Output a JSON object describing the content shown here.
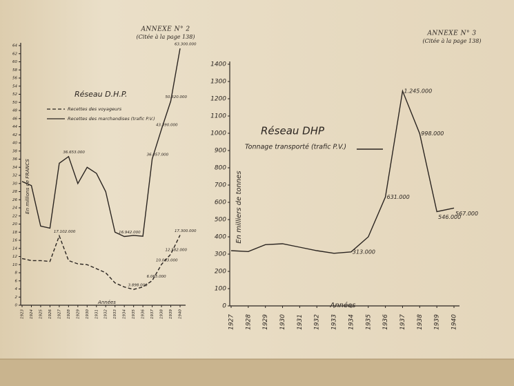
{
  "chart_data": [
    {
      "type": "line",
      "annex": "ANNEXE N° 2",
      "annex_note": "(Citée à la page 138)",
      "title": "Réseau D.H.P.",
      "y_label": "En millions de FRANCS",
      "x_label": "Années",
      "categories": [
        "1923",
        "1924",
        "1925",
        "1926",
        "1927",
        "1928",
        "1929",
        "1930",
        "1931",
        "1932",
        "1933",
        "1934",
        "1935",
        "1936",
        "1937",
        "1938",
        "1939",
        "1940"
      ],
      "ylim": [
        0,
        64
      ],
      "yticks": [
        0,
        2,
        4,
        6,
        8,
        10,
        12,
        14,
        16,
        18,
        20,
        22,
        24,
        26,
        28,
        30,
        32,
        34,
        36,
        38,
        40,
        42,
        44,
        46,
        48,
        50,
        52,
        54,
        56,
        58,
        60,
        62,
        64
      ],
      "series": [
        {
          "name": "Recettes des voyageurs",
          "color": "#2a2420",
          "style": "dashed",
          "values": [
            11.5,
            11,
            11,
            10.8,
            17.102,
            11,
            10.2,
            10,
            9,
            8,
            5.5,
            4.5,
            3.898,
            4.5,
            6.065,
            10.063,
            12.582,
            17.3
          ],
          "value_labels": [
            null,
            null,
            null,
            null,
            "17.102.000",
            null,
            null,
            null,
            null,
            null,
            null,
            null,
            "3.898.000",
            null,
            "6.065.000",
            "10.063.000",
            "12.582.000",
            "17.300.000"
          ]
        },
        {
          "name": "Recettes des marchandises (trafic P.V.)",
          "color": "#2a2420",
          "style": "solid",
          "values": [
            30.5,
            29.5,
            19.5,
            19,
            35,
            36.653,
            30,
            34,
            32.5,
            28,
            18,
            16.942,
            17.2,
            17,
            36.057,
            43.39,
            50.32,
            63.3
          ],
          "value_labels": [
            null,
            null,
            null,
            null,
            null,
            "36.653.000",
            null,
            null,
            null,
            null,
            null,
            "16.942.000",
            null,
            null,
            "36.057.000",
            "43.390.000",
            "50.320.000",
            "63.300.000"
          ]
        }
      ]
    },
    {
      "type": "line",
      "annex": "ANNEXE N° 3",
      "annex_note": "(Citée à la page 138)",
      "title": "Réseau DHP",
      "y_label": "En milliers de tonnes",
      "x_label": "Années",
      "categories": [
        "1927",
        "1928",
        "1929",
        "1930",
        "1931",
        "1932",
        "1933",
        "1934",
        "1935",
        "1936",
        "1937",
        "1938",
        "1939",
        "1940"
      ],
      "ylim": [
        0,
        1400
      ],
      "yticks": [
        0,
        100,
        200,
        300,
        400,
        500,
        600,
        700,
        800,
        900,
        1000,
        1100,
        1200,
        1300,
        1400
      ],
      "series": [
        {
          "name": "Tonnage transporté (trafic P.V.)",
          "color": "#2a2420",
          "style": "solid",
          "values": [
            320,
            315,
            355,
            360,
            340,
            320,
            305,
            313,
            400,
            631,
            1245,
            998,
            546,
            567
          ],
          "value_labels": [
            null,
            null,
            null,
            null,
            null,
            null,
            null,
            "313.000",
            null,
            "631.000",
            "1.245.000",
            "998.000",
            "546.000",
            "567.000"
          ]
        }
      ]
    }
  ]
}
